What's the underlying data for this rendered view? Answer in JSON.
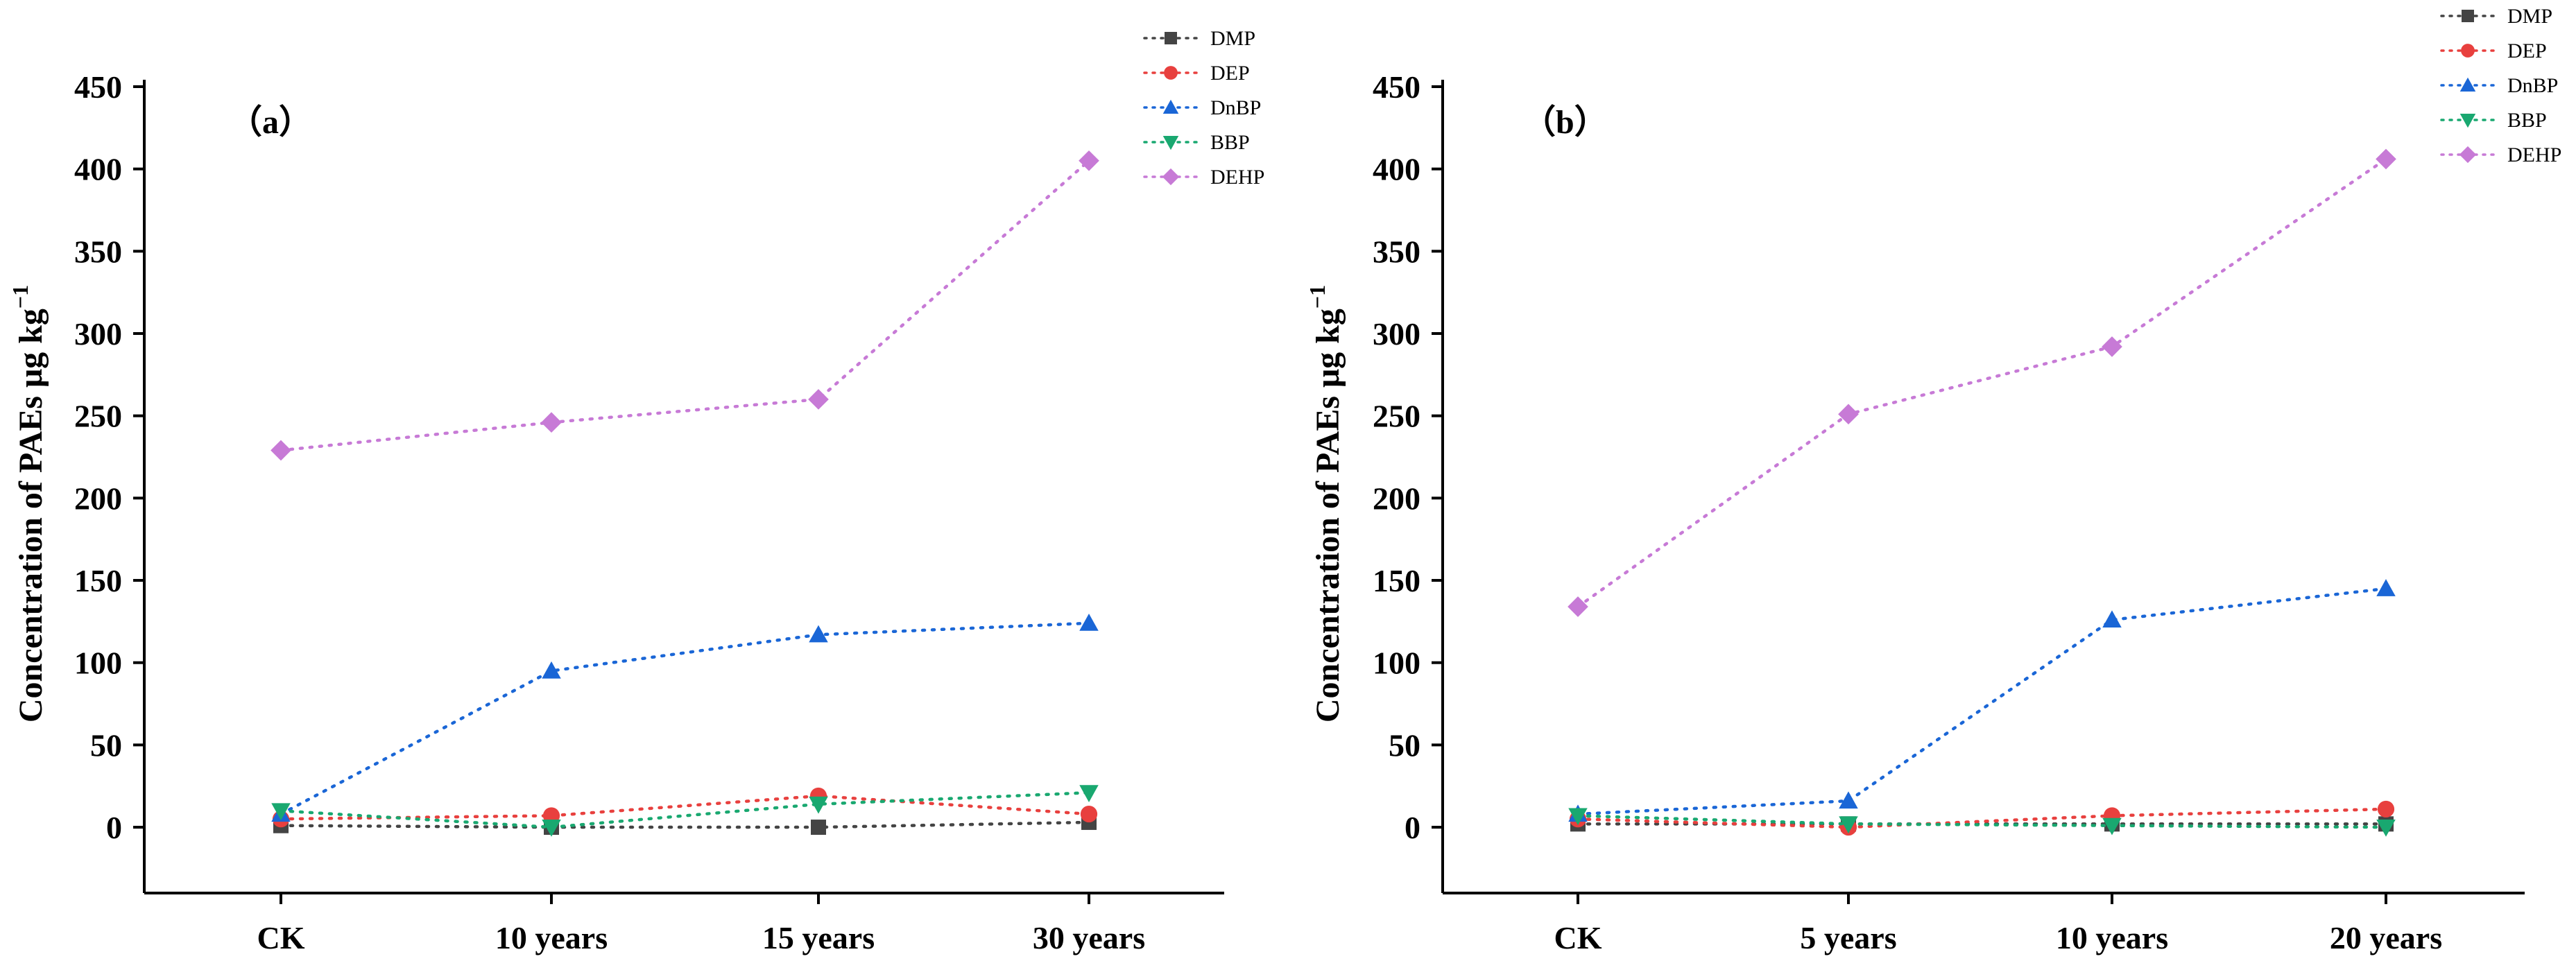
{
  "chart_data": [
    {
      "type": "line",
      "panel_label": "（a）",
      "ylabel_main": "Concentration of PAEs μg kg",
      "ylabel_sup": "−1",
      "ylim": [
        -40,
        450
      ],
      "yticks": [
        0,
        50,
        100,
        150,
        200,
        250,
        300,
        350,
        400,
        450
      ],
      "categories": [
        "CK",
        "10 years",
        "15 years",
        "30 years"
      ],
      "legend_position": "top-right",
      "series": [
        {
          "name": "DMP",
          "color": "#444444",
          "marker": "square",
          "values": [
            1,
            0,
            0,
            3
          ]
        },
        {
          "name": "DEP",
          "color": "#e8403e",
          "marker": "circle",
          "values": [
            5,
            7,
            19,
            8
          ]
        },
        {
          "name": "DnBP",
          "color": "#1a66d6",
          "marker": "triangle-up",
          "values": [
            8,
            95,
            117,
            124
          ]
        },
        {
          "name": "BBP",
          "color": "#19a870",
          "marker": "triangle-down",
          "values": [
            10,
            0,
            14,
            21
          ]
        },
        {
          "name": "DEHP",
          "color": "#c77ad6",
          "marker": "diamond",
          "values": [
            229,
            246,
            260,
            405
          ]
        }
      ]
    },
    {
      "type": "line",
      "panel_label": "（b）",
      "ylabel_main": "Concentration of PAEs μg kg",
      "ylabel_sup": "−1",
      "ylim": [
        -40,
        450
      ],
      "yticks": [
        0,
        50,
        100,
        150,
        200,
        250,
        300,
        350,
        400,
        450
      ],
      "categories": [
        "CK",
        "5 years",
        "10 years",
        "20 years"
      ],
      "legend_position": "top-right",
      "series": [
        {
          "name": "DMP",
          "color": "#444444",
          "marker": "square",
          "values": [
            2,
            2,
            2,
            2
          ]
        },
        {
          "name": "DEP",
          "color": "#e8403e",
          "marker": "circle",
          "values": [
            5,
            0,
            7,
            11
          ]
        },
        {
          "name": "DnBP",
          "color": "#1a66d6",
          "marker": "triangle-up",
          "values": [
            8,
            16,
            126,
            145
          ]
        },
        {
          "name": "BBP",
          "color": "#19a870",
          "marker": "triangle-down",
          "values": [
            7,
            2,
            1,
            0
          ]
        },
        {
          "name": "DEHP",
          "color": "#c77ad6",
          "marker": "diamond",
          "values": [
            134,
            251,
            292,
            406
          ]
        }
      ]
    }
  ]
}
